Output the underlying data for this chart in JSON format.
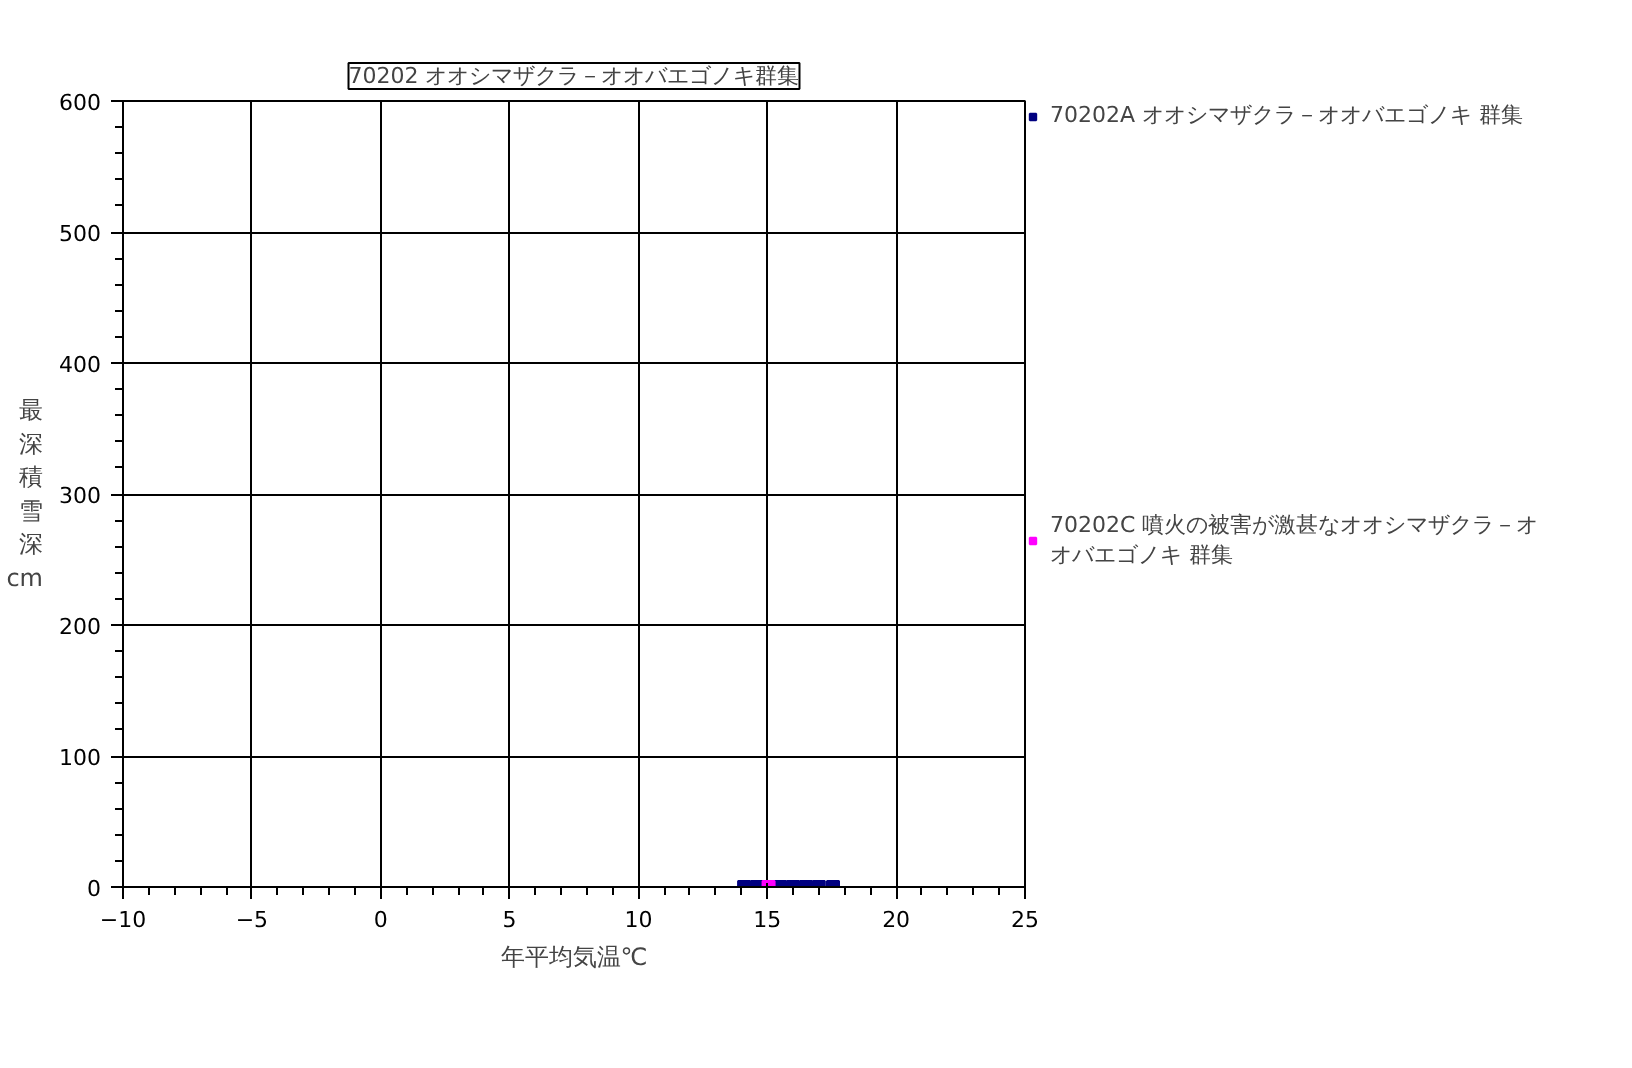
{
  "chart_data": {
    "type": "scatter",
    "title": "70202 オオシマザクラ－オオバエゴノキ群集",
    "xlabel": "年平均気温℃",
    "ylabel": "最深積雪深cm",
    "xlim": [
      -10,
      25
    ],
    "xticks": [
      -10,
      -5,
      0,
      5,
      10,
      15,
      20,
      25
    ],
    "ylim": [
      0,
      600
    ],
    "yticks": [
      0,
      100,
      200,
      300,
      400,
      500,
      600
    ],
    "grid": true,
    "legend": "right",
    "marker": "square",
    "series": [
      {
        "name": "70202A オオシマザクラ－オオバエゴノキ 群集",
        "color": "#000080",
        "x": [
          14.1,
          14.6,
          15.5,
          16.0,
          16.5,
          17.0,
          17.55
        ],
        "values": [
          0,
          0,
          0,
          0,
          0,
          0,
          0
        ]
      },
      {
        "name": "70202C 噴火の被害が激甚なオオシマザクラ－オオバエゴノキ 群集",
        "color": "#ff00ff",
        "x": [
          15.05
        ],
        "values": [
          0
        ]
      }
    ]
  }
}
